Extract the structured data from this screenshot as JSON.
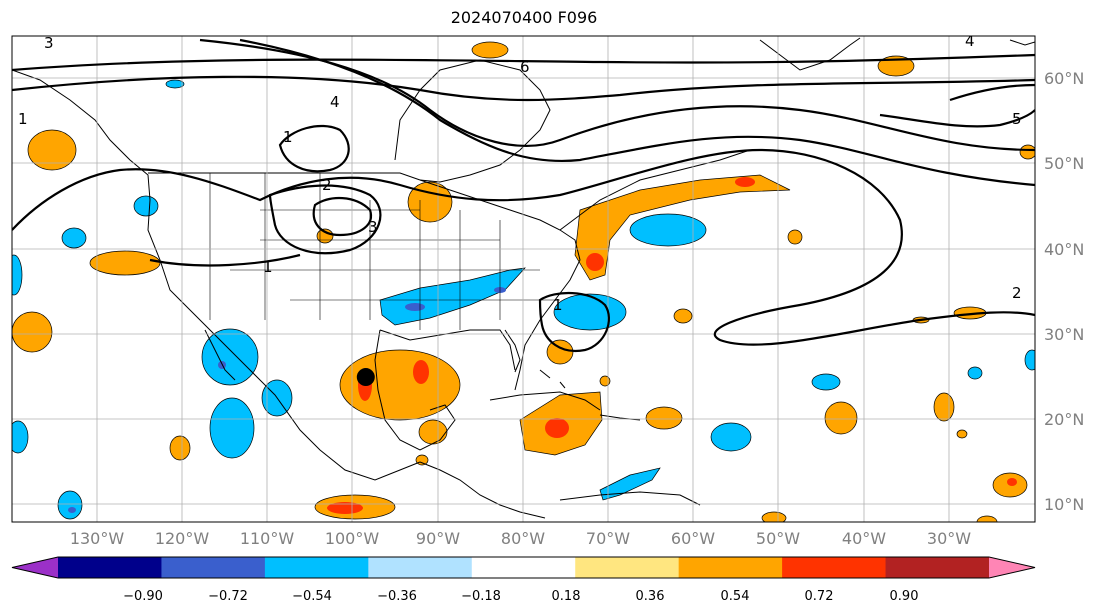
{
  "title": "2024070400 F096",
  "map": {
    "projection": "plate-carree",
    "lon_range": [
      -138,
      -18
    ],
    "lat_range": [
      8,
      65
    ],
    "grid": true,
    "lon_ticks": [
      "130°W",
      "120°W",
      "110°W",
      "100°W",
      "90°W",
      "80°W",
      "70°W",
      "60°W",
      "50°W",
      "40°W",
      "30°W"
    ],
    "lat_ticks": [
      "60°N",
      "50°N",
      "40°N",
      "30°N",
      "20°N",
      "10°N"
    ],
    "marker": {
      "lon": -96.5,
      "lat": 25.0,
      "color": "#000000"
    },
    "contour_labels": [
      "1",
      "1",
      "1",
      "2",
      "2",
      "3",
      "3",
      "4",
      "4",
      "5",
      "6",
      "1"
    ]
  },
  "colorbar": {
    "ticks": [
      "−0.90",
      "−0.72",
      "−0.54",
      "−0.36",
      "−0.18",
      "0.18",
      "0.36",
      "0.54",
      "0.72",
      "0.90"
    ],
    "colors": [
      "#9b30c8",
      "#00008b",
      "#3a5fcd",
      "#00bfff",
      "#b0e2ff",
      "#ffffff",
      "#ffe680",
      "#ffa500",
      "#ff3300",
      "#b22222",
      "#ff85b5"
    ]
  }
}
